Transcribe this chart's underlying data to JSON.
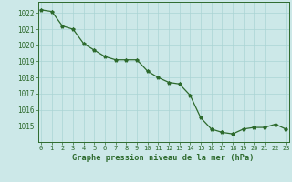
{
  "x": [
    0,
    1,
    2,
    3,
    4,
    5,
    6,
    7,
    8,
    9,
    10,
    11,
    12,
    13,
    14,
    15,
    16,
    17,
    18,
    19,
    20,
    21,
    22,
    23
  ],
  "y": [
    1022.2,
    1022.1,
    1021.2,
    1021.0,
    1020.1,
    1019.7,
    1019.3,
    1019.1,
    1019.1,
    1019.1,
    1018.4,
    1018.0,
    1017.7,
    1017.6,
    1016.9,
    1015.5,
    1014.8,
    1014.6,
    1014.5,
    1014.8,
    1014.9,
    1014.9,
    1015.1,
    1014.8
  ],
  "line_color": "#2d6a2d",
  "marker": "*",
  "bg_color": "#cce8e8",
  "grid_color": "#aad4d4",
  "xlabel": "Graphe pression niveau de la mer (hPa)",
  "xlabel_color": "#2d6a2d",
  "tick_color": "#2d6a2d",
  "spine_color": "#2d6a2d",
  "ylim_min": 1014.0,
  "ylim_max": 1022.7,
  "xlim_min": -0.3,
  "xlim_max": 23.3,
  "yticks": [
    1015,
    1016,
    1017,
    1018,
    1019,
    1020,
    1021,
    1022
  ],
  "xtick_labels": [
    "0",
    "1",
    "2",
    "3",
    "4",
    "5",
    "6",
    "7",
    "8",
    "9",
    "10",
    "11",
    "12",
    "13",
    "14",
    "15",
    "16",
    "17",
    "18",
    "19",
    "20",
    "21",
    "22",
    "23"
  ]
}
